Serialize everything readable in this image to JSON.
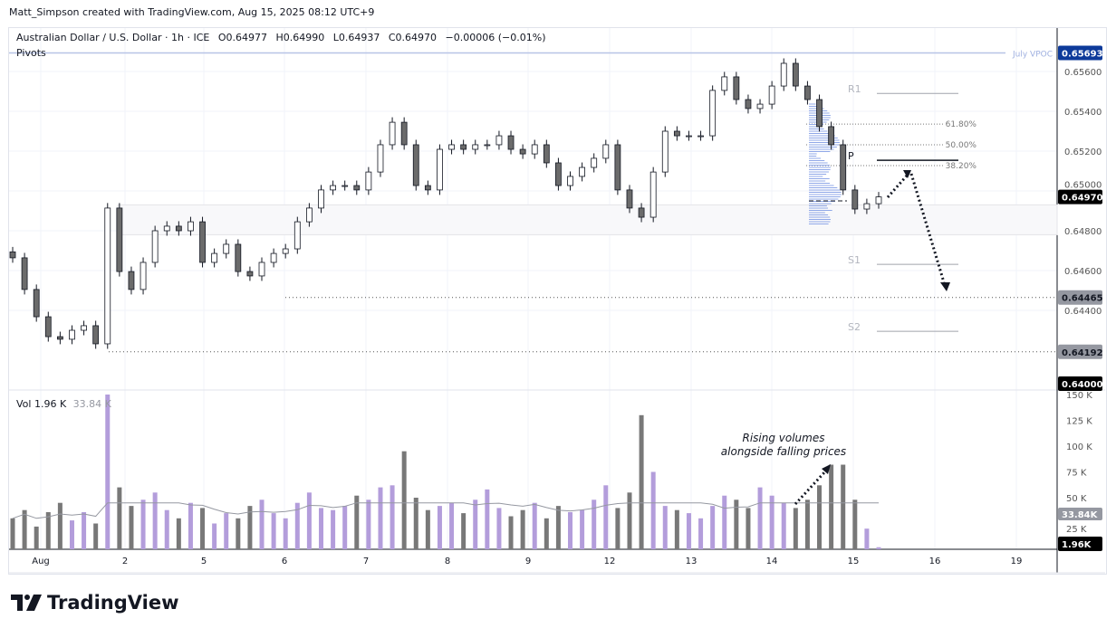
{
  "header": {
    "credit": "Matt_Simpson created with TradingView.com, Aug 15, 2025 08:12 UTC+9"
  },
  "legend": {
    "symbol": "Australian Dollar / U.S. Dollar · 1h · ICE",
    "open": "O0.64977",
    "high": "H0.64990",
    "low": "L0.64937",
    "close": "C0.64970",
    "change": "−0.00006 (−0.01%)",
    "indicator": "Pivots"
  },
  "volume_legend": {
    "label": "Vol",
    "value": "1.96 K",
    "ma": "33.84 K"
  },
  "annotation": {
    "line1": "Rising volumes",
    "line2": "alongside falling prices"
  },
  "brand": {
    "name": "TradingView"
  },
  "colors": {
    "up_volume": "#b39ddb",
    "down_volume": "#787878",
    "vpoc": "#2962ff",
    "profile": "#90a8e8",
    "candle_down": "#6b6b6b"
  },
  "chart_data": {
    "type": "candlestick",
    "price_axis": {
      "ticks": [
        "0.65600",
        "0.65400",
        "0.65200",
        "0.65000",
        "0.64800",
        "0.64600",
        "0.64400"
      ],
      "ylim": [
        0.64,
        0.6575
      ]
    },
    "volume_axis": {
      "ticks": [
        "150 K",
        "125 K",
        "100 K",
        "75 K",
        "50 K",
        "25 K"
      ]
    },
    "x_ticks": [
      "Aug",
      "2",
      "5",
      "6",
      "7",
      "8",
      "9",
      "12",
      "13",
      "14",
      "15",
      "16",
      "19"
    ],
    "price_labels": {
      "vpoc": "0.65693",
      "last": "0.64970",
      "level1": "0.64465",
      "level2": "0.64192",
      "bottom": "0.64000",
      "vol_ma": "33.84K",
      "vol_last": "1.96K"
    },
    "vpoc_label": "July VPOC",
    "levels": {
      "vpoc": 0.65693,
      "support1": 0.64465,
      "support2": 0.64192,
      "zone": [
        0.6478,
        0.6493
      ]
    },
    "pivots": [
      {
        "label": "R1",
        "value": 0.6549
      },
      {
        "label": "P",
        "value": 0.65154
      },
      {
        "label": "S1",
        "value": 0.64631
      },
      {
        "label": "S2",
        "value": 0.64295
      }
    ],
    "fib": [
      {
        "label": "61.80%",
        "value": 0.65336
      },
      {
        "label": "50.00%",
        "value": 0.65232
      },
      {
        "label": "38.20%",
        "value": 0.65127
      }
    ],
    "closes": [
      0.64664,
      0.64505,
      0.64368,
      0.64268,
      0.64255,
      0.643,
      0.64323,
      0.64232,
      0.64914,
      0.64595,
      0.64505,
      0.64641,
      0.648,
      0.64823,
      0.648,
      0.64845,
      0.64641,
      0.64686,
      0.64732,
      0.64595,
      0.64573,
      0.64641,
      0.64686,
      0.64709,
      0.64845,
      0.64914,
      0.65005,
      0.65027,
      0.65027,
      0.65005,
      0.65095,
      0.65232,
      0.65345,
      0.65232,
      0.65027,
      0.65005,
      0.65209,
      0.65232,
      0.65209,
      0.65232,
      0.65232,
      0.65277,
      0.65209,
      0.65186,
      0.65232,
      0.65141,
      0.65027,
      0.65073,
      0.65118,
      0.65164,
      0.65232,
      0.65005,
      0.64914,
      0.64868,
      0.65095,
      0.653,
      0.65277,
      0.65277,
      0.65277,
      0.65505,
      0.65573,
      0.65459,
      0.65414,
      0.65436,
      0.65527,
      0.65641,
      0.65527,
      0.65459,
      0.65323,
      0.65232,
      0.65005,
      0.64909,
      0.64936,
      0.6497
    ],
    "volumes_k": [
      30,
      38,
      22,
      36,
      45,
      28,
      36,
      25,
      150,
      60,
      42,
      48,
      55,
      38,
      30,
      45,
      40,
      25,
      35,
      30,
      42,
      48,
      35,
      30,
      45,
      55,
      40,
      38,
      42,
      52,
      48,
      60,
      62,
      95,
      50,
      38,
      42,
      45,
      35,
      48,
      58,
      40,
      32,
      38,
      45,
      30,
      42,
      36,
      38,
      48,
      62,
      40,
      55,
      130,
      75,
      42,
      38,
      35,
      30,
      42,
      52,
      48,
      40,
      60,
      52,
      45,
      40,
      48,
      62,
      82,
      82,
      48,
      20,
      2
    ]
  }
}
